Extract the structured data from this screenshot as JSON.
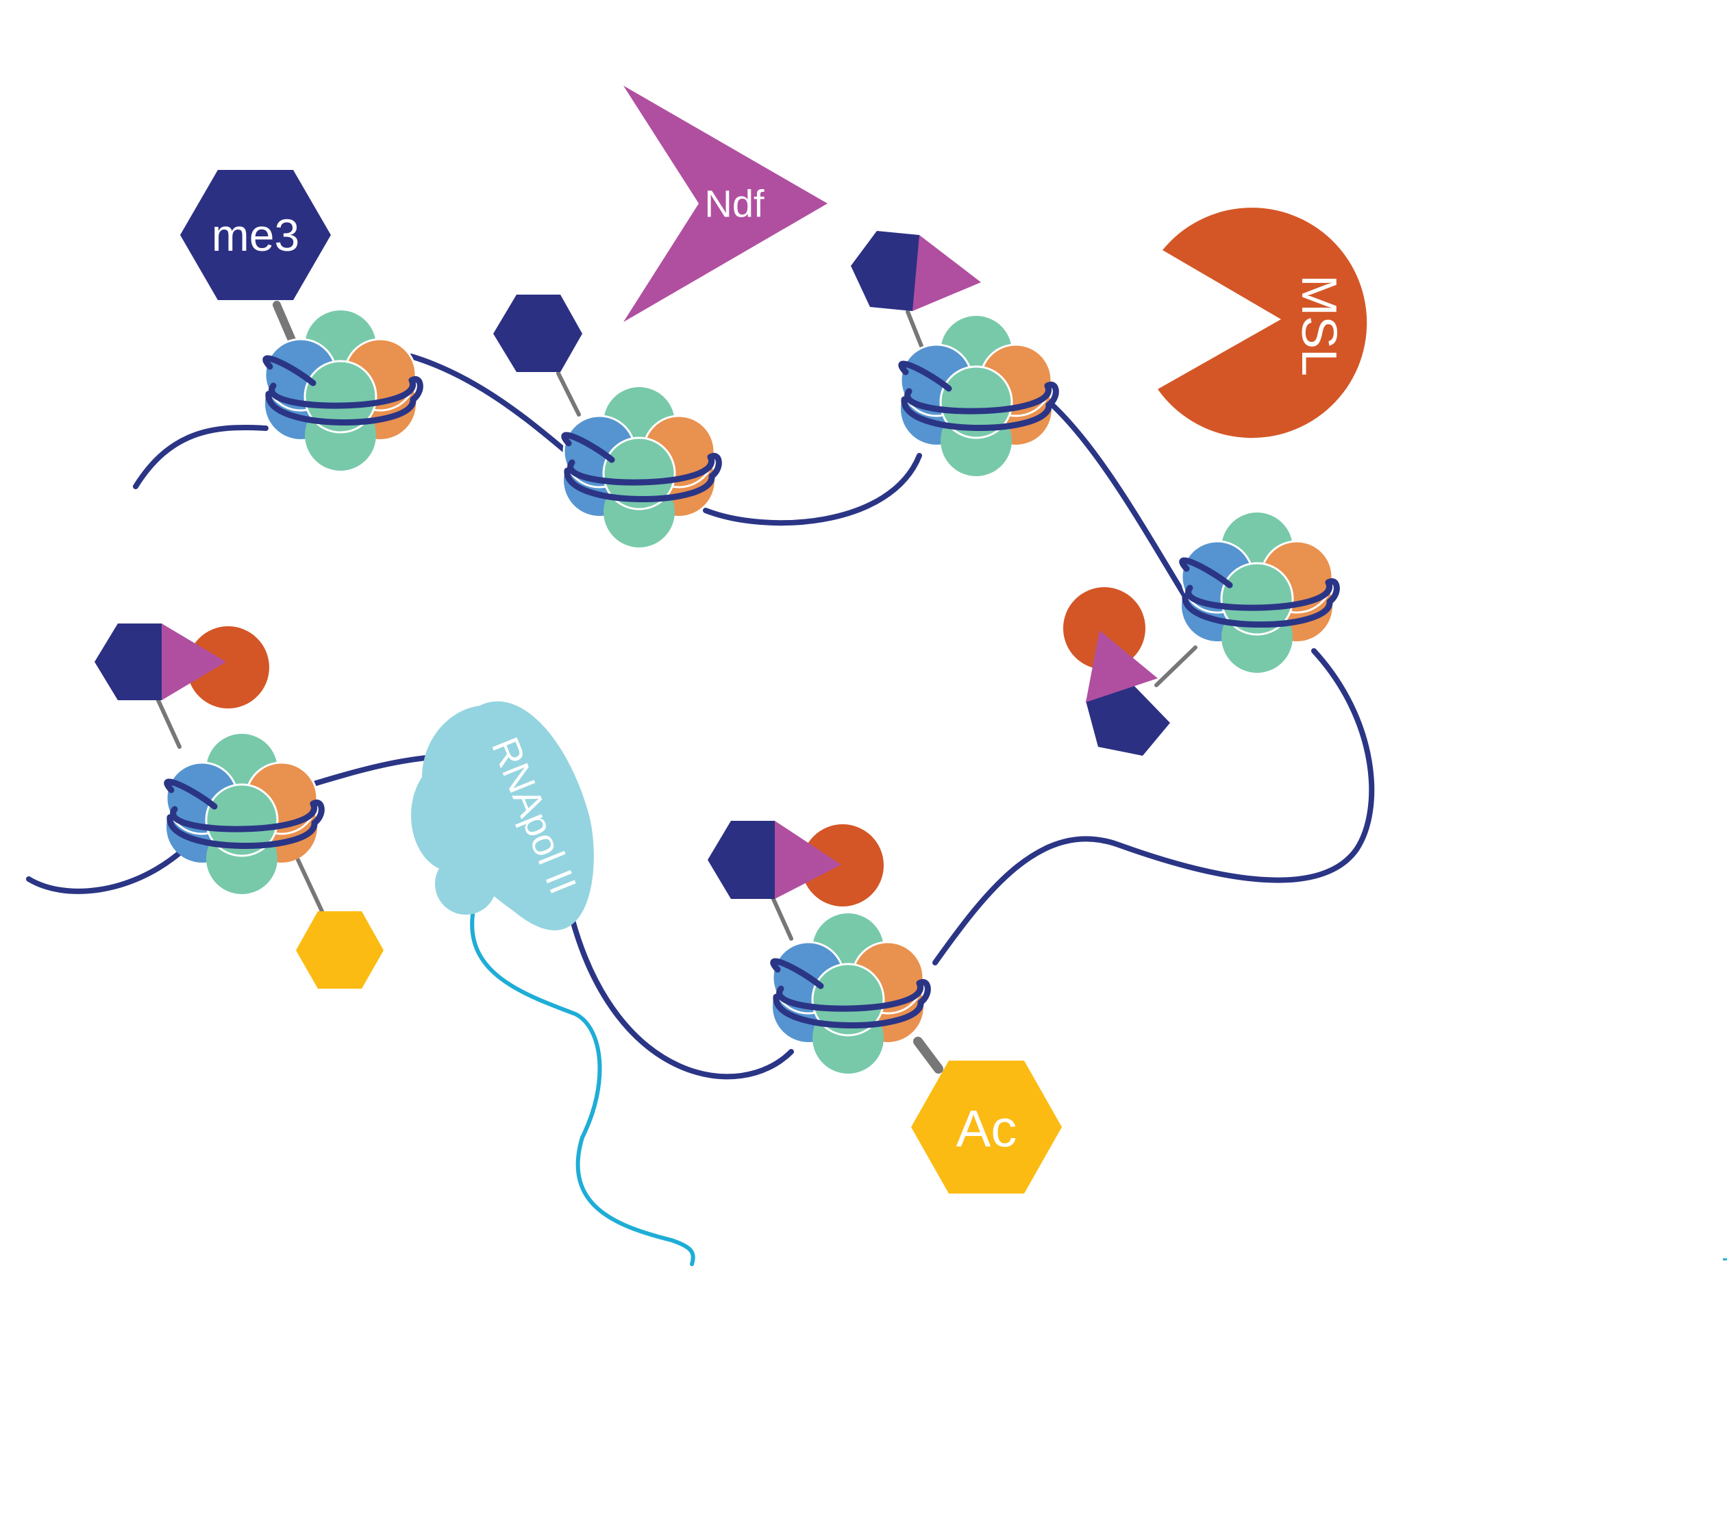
{
  "labels": {
    "me3": "me3",
    "ndf": "Ndf",
    "msl": "MSL",
    "rnapol": "RNApol II",
    "ac": "Ac"
  },
  "colors": {
    "dna": "#2b3585",
    "rna": "#1eadd6",
    "h2a": "#5594d0",
    "h2b": "#e9914f",
    "h3h4": "#77c9aa",
    "mark_navy": "#2b3083",
    "ndf_purple": "#b04fa0",
    "msl_orange": "#d45626",
    "ac_yellow": "#fbbb12",
    "rnapol_blue": "#94d4e0",
    "stalk": "#777777"
  },
  "icons": [
    "nucleosome-icon",
    "hexagon-icon",
    "triangle-icon",
    "pacman-icon",
    "blob-icon"
  ]
}
